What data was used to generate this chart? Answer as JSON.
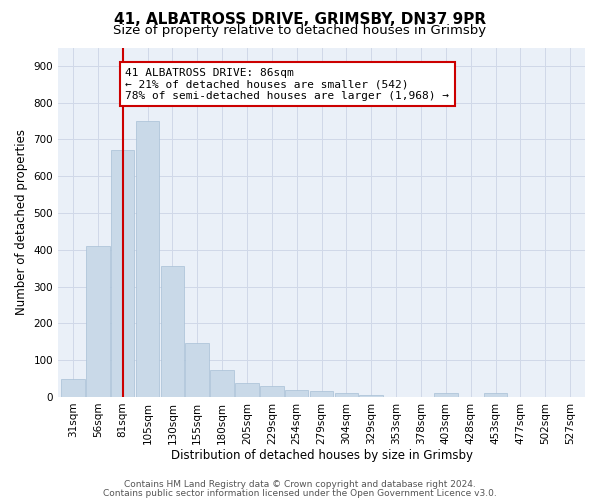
{
  "title1": "41, ALBATROSS DRIVE, GRIMSBY, DN37 9PR",
  "title2": "Size of property relative to detached houses in Grimsby",
  "xlabel": "Distribution of detached houses by size in Grimsby",
  "ylabel": "Number of detached properties",
  "categories": [
    "31sqm",
    "56sqm",
    "81sqm",
    "105sqm",
    "130sqm",
    "155sqm",
    "180sqm",
    "205sqm",
    "229sqm",
    "254sqm",
    "279sqm",
    "304sqm",
    "329sqm",
    "353sqm",
    "378sqm",
    "403sqm",
    "428sqm",
    "453sqm",
    "477sqm",
    "502sqm",
    "527sqm"
  ],
  "values": [
    50,
    410,
    670,
    750,
    355,
    148,
    72,
    37,
    30,
    20,
    15,
    10,
    5,
    0,
    0,
    10,
    0,
    10,
    0,
    0,
    0
  ],
  "bar_color": "#c9d9e8",
  "bar_edgecolor": "#a8c0d6",
  "redline_x": 2,
  "annotation_line1": "41 ALBATROSS DRIVE: 86sqm",
  "annotation_line2": "← 21% of detached houses are smaller (542)",
  "annotation_line3": "78% of semi-detached houses are larger (1,968) →",
  "annotation_box_color": "#ffffff",
  "annotation_box_edgecolor": "#cc0000",
  "ylim": [
    0,
    950
  ],
  "yticks": [
    0,
    100,
    200,
    300,
    400,
    500,
    600,
    700,
    800,
    900
  ],
  "grid_color": "#d0d8e8",
  "background_color": "#eaf0f8",
  "footer1": "Contains HM Land Registry data © Crown copyright and database right 2024.",
  "footer2": "Contains public sector information licensed under the Open Government Licence v3.0.",
  "title1_fontsize": 11,
  "title2_fontsize": 9.5,
  "xlabel_fontsize": 8.5,
  "ylabel_fontsize": 8.5,
  "tick_fontsize": 7.5,
  "annotation_fontsize": 8,
  "footer_fontsize": 6.5
}
